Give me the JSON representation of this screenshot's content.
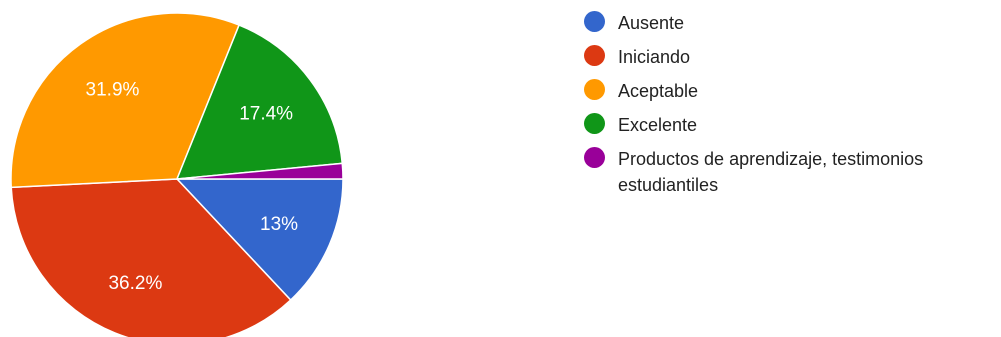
{
  "chart_data": {
    "type": "pie",
    "title": "",
    "slices": [
      {
        "label": "Ausente",
        "value": 13.0,
        "color": "#3366cc",
        "display": "13%"
      },
      {
        "label": "Iniciando",
        "value": 36.2,
        "color": "#dc3912",
        "display": "36.2%"
      },
      {
        "label": "Aceptable",
        "value": 31.9,
        "color": "#ff9900",
        "display": "31.9%"
      },
      {
        "label": "Excelente",
        "value": 17.4,
        "color": "#109618",
        "display": "17.4%"
      },
      {
        "label": "Productos de aprendizaje, testimonios estudiantiles",
        "value": 1.5,
        "color": "#990099",
        "display": ""
      }
    ],
    "legend_position": "right",
    "start_angle": "3 o'clock, clockwise"
  }
}
